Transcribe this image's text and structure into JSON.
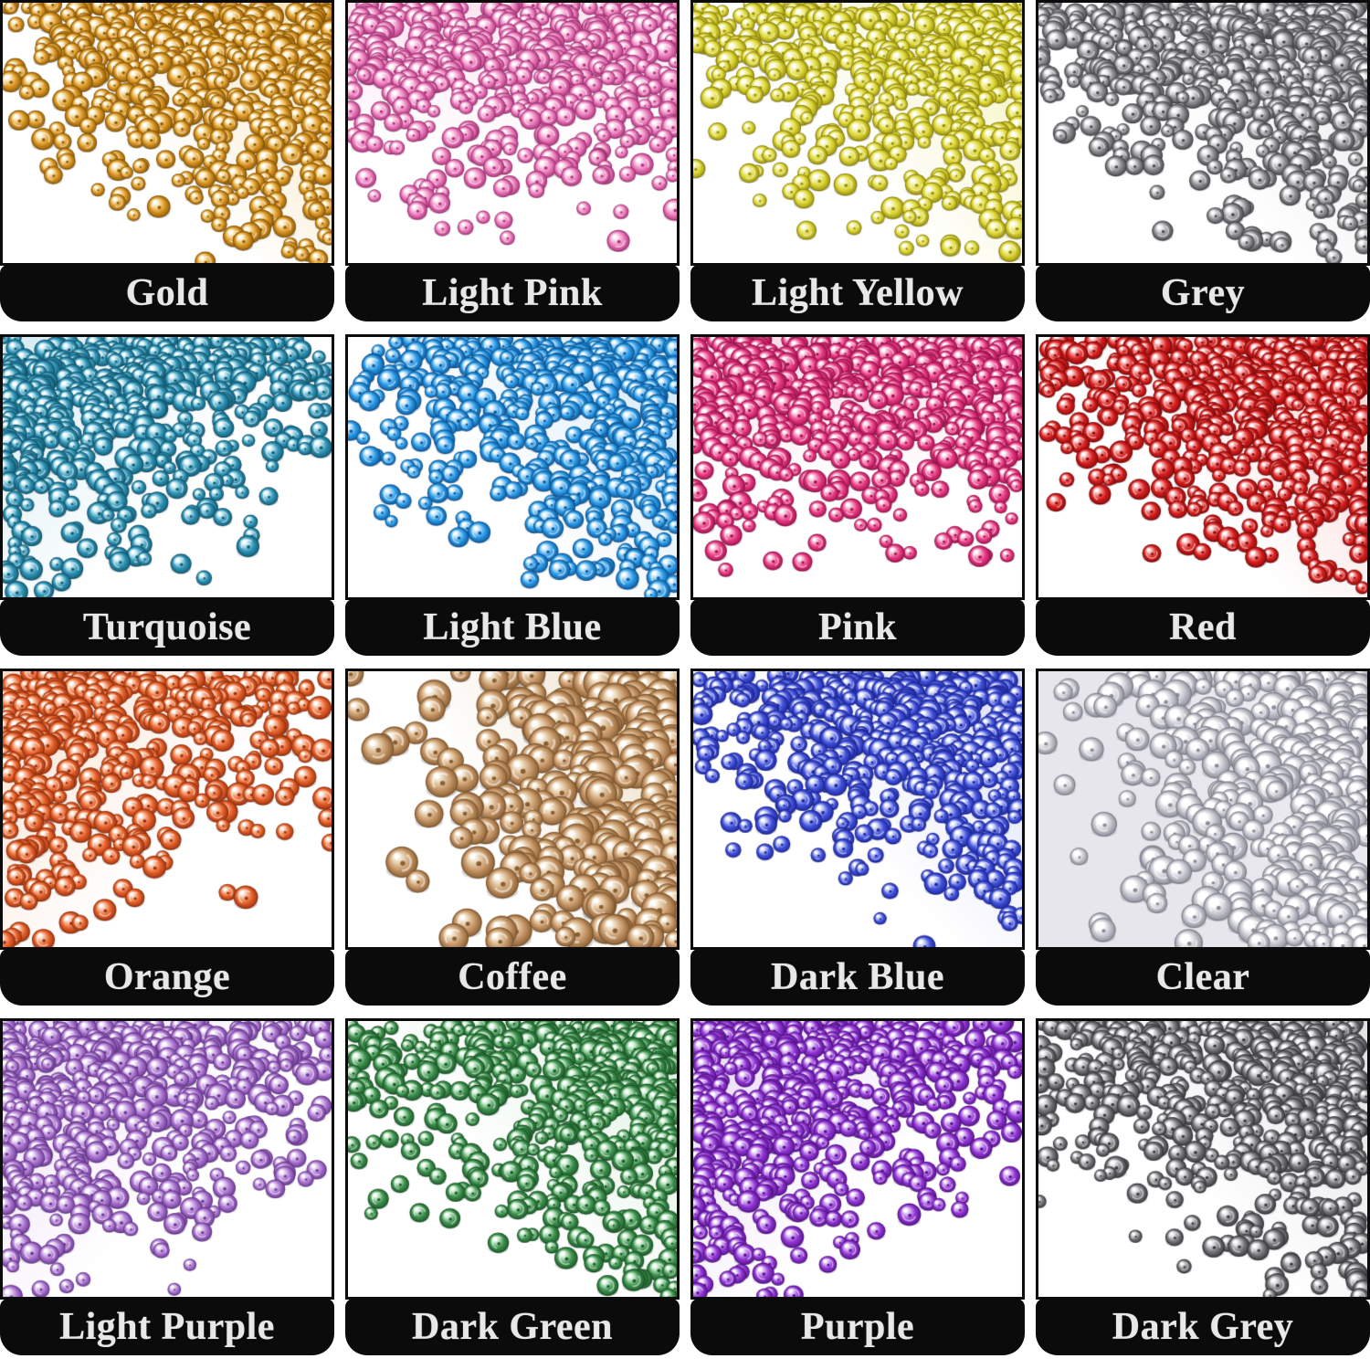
{
  "cells": [
    {
      "label": "Gold",
      "base": "#dd9823",
      "light": "#f7e3ae",
      "dark": "#8f5c0a",
      "tint": "#f6e3b4",
      "bg": "#ffffff",
      "bias": "tr",
      "density": 1.0,
      "size": 1.0
    },
    {
      "label": "Light Pink",
      "base": "#ec7fbc",
      "light": "#fbd3e9",
      "dark": "#b0347e",
      "tint": "#fce4f1",
      "bg": "#ffffff",
      "bias": "t",
      "density": 0.85,
      "size": 1.0
    },
    {
      "label": "Light Yellow",
      "base": "#ddd835",
      "light": "#f5f3b0",
      "dark": "#998f10",
      "tint": "#f6f3bb",
      "bg": "#ffffff",
      "bias": "tr",
      "density": 0.9,
      "size": 1.0
    },
    {
      "label": "Grey",
      "base": "#8f8f93",
      "light": "#e0e0e2",
      "dark": "#4a4a4e",
      "tint": "#e8e8ea",
      "bg": "#ffffff",
      "bias": "tr",
      "density": 0.95,
      "size": 1.0
    },
    {
      "label": "Turquoise",
      "base": "#2f93b5",
      "light": "#b5e3ef",
      "dark": "#145d76",
      "tint": "#d4ecf3",
      "bg": "#ffffff",
      "bias": "tl",
      "density": 0.95,
      "size": 1.0
    },
    {
      "label": "Light Blue",
      "base": "#2b9ce8",
      "light": "#b8e0fa",
      "dark": "#0f5a9e",
      "tint": "#d0e9fb",
      "bg": "#ffffff",
      "bias": "tr",
      "density": 0.95,
      "size": 1.0
    },
    {
      "label": "Pink",
      "base": "#ea3d85",
      "light": "#f9b8d3",
      "dark": "#a31250",
      "tint": "#fbdcea",
      "bg": "#ffffff",
      "bias": "t",
      "density": 1.0,
      "size": 1.0
    },
    {
      "label": "Red",
      "base": "#d91f1f",
      "light": "#f5a0a0",
      "dark": "#8a0c0c",
      "tint": "#f8cfcf",
      "bg": "#ffffff",
      "bias": "tr",
      "density": 1.0,
      "size": 1.0
    },
    {
      "label": "Orange",
      "base": "#e8622b",
      "light": "#f9c3a5",
      "dark": "#9e3410",
      "tint": "#fbdecb",
      "bg": "#ffffff",
      "bias": "tl",
      "density": 0.7,
      "size": 1.05
    },
    {
      "label": "Coffee",
      "base": "#c99a6b",
      "light": "#ecd9bc",
      "dark": "#8a5f33",
      "tint": "#f0e3cf",
      "bg": "#ffffff",
      "bias": "r",
      "density": 0.55,
      "size": 1.5
    },
    {
      "label": "Dark Blue",
      "base": "#4353dc",
      "light": "#c0c8f5",
      "dark": "#1d279e",
      "tint": "#dce0f9",
      "bg": "#ffffff",
      "bias": "tr",
      "density": 0.9,
      "size": 1.0
    },
    {
      "label": "Clear",
      "base": "#c9c9d2",
      "light": "#ffffff",
      "dark": "#8d8d99",
      "tint": "#ededf2",
      "bg": "#e6e6ec",
      "bias": "r",
      "density": 0.65,
      "size": 1.3
    },
    {
      "label": "Light Purple",
      "base": "#ab76d0",
      "light": "#e2cbf1",
      "dark": "#6d3a96",
      "tint": "#eddef7",
      "bg": "#ffffff",
      "bias": "tl",
      "density": 0.85,
      "size": 1.0
    },
    {
      "label": "Dark Green",
      "base": "#3f9150",
      "light": "#bce6c2",
      "dark": "#1c5c28",
      "tint": "#dcf1df",
      "bg": "#ffffff",
      "bias": "tr",
      "density": 0.9,
      "size": 1.0
    },
    {
      "label": "Purple",
      "base": "#9137d6",
      "light": "#d9b5f3",
      "dark": "#5a1390",
      "tint": "#e8d6f7",
      "bg": "#ffffff",
      "bias": "tl",
      "density": 1.0,
      "size": 1.0
    },
    {
      "label": "Dark Grey",
      "base": "#77777b",
      "light": "#d5d5d8",
      "dark": "#3a3a3e",
      "tint": "#e2e2e4",
      "bg": "#ffffff",
      "bias": "tr",
      "density": 0.95,
      "size": 1.0
    }
  ],
  "style": {
    "bar_color": "#0b0b0b",
    "label_text_color": "#e8e8e8"
  }
}
